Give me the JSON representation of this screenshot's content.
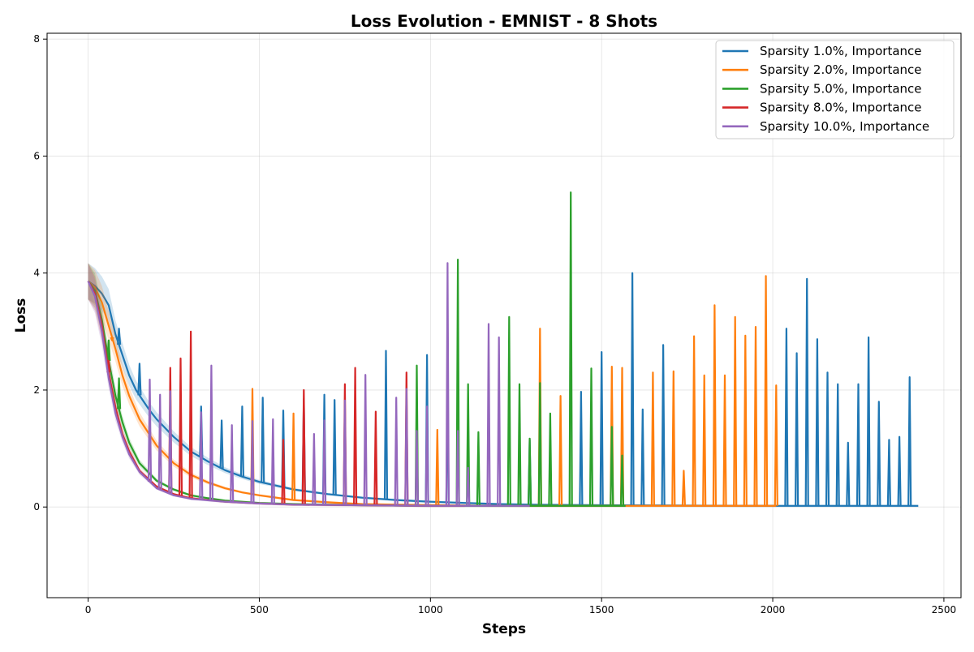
{
  "chart_data": {
    "type": "line",
    "title": "Loss Evolution - EMNIST - 8 Shots",
    "xlabel": "Steps",
    "ylabel": "Loss",
    "xlim": [
      -120,
      2550
    ],
    "ylim": [
      -1.55,
      8.1
    ],
    "xticks": [
      0,
      500,
      1000,
      1500,
      2000,
      2500
    ],
    "xtick_labels": [
      "0",
      "500",
      "1000",
      "1500",
      "2000",
      "2500"
    ],
    "yticks": [
      0,
      2,
      4,
      6,
      8
    ],
    "ytick_labels": [
      "0",
      "2",
      "4",
      "6",
      "8"
    ],
    "grid": true,
    "legend_position": "top-right",
    "series": [
      {
        "name": "Sparsity 1.0%, Importance",
        "color": "#1f77b4",
        "x": [
          0,
          20,
          40,
          60,
          70,
          80,
          100,
          120,
          140,
          160,
          180,
          200,
          250,
          300,
          350,
          400,
          450,
          500,
          600,
          700,
          800,
          900,
          1000,
          1100,
          1200,
          1300,
          1400,
          1500,
          1600,
          1700,
          1800,
          1900,
          2000,
          2100,
          2200,
          2300,
          2400,
          2425
        ],
        "y": [
          3.86,
          3.78,
          3.65,
          3.45,
          3.2,
          2.95,
          2.6,
          2.25,
          2.0,
          1.82,
          1.65,
          1.5,
          1.2,
          0.95,
          0.78,
          0.63,
          0.52,
          0.43,
          0.3,
          0.22,
          0.16,
          0.12,
          0.09,
          0.07,
          0.05,
          0.04,
          0.035,
          0.03,
          0.028,
          0.025,
          0.022,
          0.02,
          0.02,
          0.02,
          0.02,
          0.02,
          0.02,
          0.02
        ],
        "spikes": [
          [
            90,
            3.05
          ],
          [
            150,
            2.45
          ],
          [
            330,
            1.72
          ],
          [
            390,
            1.48
          ],
          [
            450,
            1.72
          ],
          [
            510,
            1.87
          ],
          [
            570,
            1.65
          ],
          [
            630,
            1.85
          ],
          [
            690,
            1.92
          ],
          [
            720,
            1.83
          ],
          [
            870,
            2.67
          ],
          [
            990,
            2.6
          ],
          [
            1050,
            2.1
          ],
          [
            1290,
            1.15
          ],
          [
            1440,
            1.97
          ],
          [
            1500,
            2.65
          ],
          [
            1590,
            4.0
          ],
          [
            1620,
            1.67
          ],
          [
            1680,
            2.77
          ],
          [
            2040,
            3.05
          ],
          [
            2070,
            2.63
          ],
          [
            2100,
            3.9
          ],
          [
            2130,
            2.87
          ],
          [
            2160,
            2.3
          ],
          [
            2190,
            2.1
          ],
          [
            2220,
            1.1
          ],
          [
            2250,
            2.1
          ],
          [
            2280,
            2.9
          ],
          [
            2310,
            1.8
          ],
          [
            2340,
            1.15
          ],
          [
            2370,
            1.2
          ],
          [
            2400,
            2.22
          ]
        ]
      },
      {
        "name": "Sparsity 2.0%, Importance",
        "color": "#ff7f0e",
        "x": [
          0,
          20,
          40,
          60,
          80,
          100,
          120,
          150,
          200,
          250,
          300,
          350,
          400,
          450,
          500,
          600,
          700,
          800,
          900,
          1000,
          1200,
          1400,
          1600,
          1800,
          2000,
          2010
        ],
        "y": [
          3.86,
          3.75,
          3.5,
          3.1,
          2.7,
          2.25,
          1.9,
          1.5,
          1.05,
          0.75,
          0.55,
          0.42,
          0.32,
          0.25,
          0.2,
          0.12,
          0.08,
          0.05,
          0.04,
          0.03,
          0.02,
          0.02,
          0.02,
          0.02,
          0.02,
          0.02
        ],
        "spikes": [
          [
            70,
            2.85
          ],
          [
            480,
            2.02
          ],
          [
            600,
            1.6
          ],
          [
            1020,
            1.32
          ],
          [
            1320,
            3.05
          ],
          [
            1380,
            1.9
          ],
          [
            1530,
            2.4
          ],
          [
            1560,
            2.38
          ],
          [
            1650,
            2.3
          ],
          [
            1710,
            2.32
          ],
          [
            1740,
            0.62
          ],
          [
            1770,
            2.92
          ],
          [
            1800,
            2.25
          ],
          [
            1830,
            3.45
          ],
          [
            1860,
            2.25
          ],
          [
            1890,
            3.25
          ],
          [
            1920,
            2.93
          ],
          [
            1950,
            3.08
          ],
          [
            1980,
            3.95
          ],
          [
            2010,
            2.08
          ]
        ]
      },
      {
        "name": "Sparsity 5.0%, Importance",
        "color": "#2ca02c",
        "x": [
          0,
          20,
          40,
          60,
          80,
          100,
          120,
          150,
          200,
          250,
          300,
          350,
          400,
          500,
          600,
          800,
          1000,
          1200,
          1400,
          1570
        ],
        "y": [
          3.86,
          3.7,
          3.2,
          2.5,
          1.9,
          1.45,
          1.1,
          0.75,
          0.45,
          0.3,
          0.2,
          0.15,
          0.11,
          0.07,
          0.05,
          0.03,
          0.02,
          0.02,
          0.02,
          0.02
        ],
        "spikes": [
          [
            60,
            2.85
          ],
          [
            90,
            2.2
          ],
          [
            960,
            2.42
          ],
          [
            1080,
            4.23
          ],
          [
            1110,
            2.1
          ],
          [
            1140,
            1.28
          ],
          [
            1230,
            3.25
          ],
          [
            1260,
            2.1
          ],
          [
            1290,
            1.17
          ],
          [
            1320,
            2.12
          ],
          [
            1350,
            1.6
          ],
          [
            1410,
            5.38
          ],
          [
            1470,
            2.37
          ],
          [
            1530,
            1.37
          ],
          [
            1560,
            0.88
          ]
        ]
      },
      {
        "name": "Sparsity 8.0%, Importance",
        "color": "#d62728",
        "x": [
          0,
          20,
          40,
          60,
          80,
          100,
          120,
          150,
          200,
          250,
          300,
          400,
          500,
          600,
          800,
          1000,
          1100
        ],
        "y": [
          3.86,
          3.65,
          3.1,
          2.3,
          1.7,
          1.25,
          0.95,
          0.62,
          0.35,
          0.22,
          0.15,
          0.09,
          0.06,
          0.04,
          0.03,
          0.02,
          0.02
        ],
        "spikes": [
          [
            60,
            2.5
          ],
          [
            240,
            2.38
          ],
          [
            270,
            2.54
          ],
          [
            300,
            3.0
          ],
          [
            570,
            1.15
          ],
          [
            630,
            2.0
          ],
          [
            750,
            2.1
          ],
          [
            780,
            2.38
          ],
          [
            840,
            1.63
          ],
          [
            930,
            2.3
          ]
        ]
      },
      {
        "name": "Sparsity 10.0%, Importance",
        "color": "#9467bd",
        "x": [
          0,
          20,
          40,
          60,
          80,
          100,
          120,
          150,
          200,
          250,
          300,
          400,
          500,
          600,
          800,
          1000,
          1200,
          1290
        ],
        "y": [
          3.86,
          3.6,
          3.0,
          2.2,
          1.6,
          1.2,
          0.9,
          0.6,
          0.32,
          0.2,
          0.14,
          0.09,
          0.06,
          0.04,
          0.03,
          0.02,
          0.02,
          0.02
        ],
        "spikes": [
          [
            180,
            2.18
          ],
          [
            210,
            1.92
          ],
          [
            240,
            1.98
          ],
          [
            330,
            1.62
          ],
          [
            360,
            2.42
          ],
          [
            420,
            1.4
          ],
          [
            480,
            1.47
          ],
          [
            540,
            1.5
          ],
          [
            660,
            1.25
          ],
          [
            690,
            1.48
          ],
          [
            750,
            1.82
          ],
          [
            810,
            2.26
          ],
          [
            900,
            1.87
          ],
          [
            930,
            2.02
          ],
          [
            960,
            1.3
          ],
          [
            990,
            1.72
          ],
          [
            1050,
            4.17
          ],
          [
            1080,
            1.3
          ],
          [
            1110,
            0.67
          ],
          [
            1170,
            3.13
          ],
          [
            1200,
            2.9
          ]
        ]
      }
    ]
  }
}
